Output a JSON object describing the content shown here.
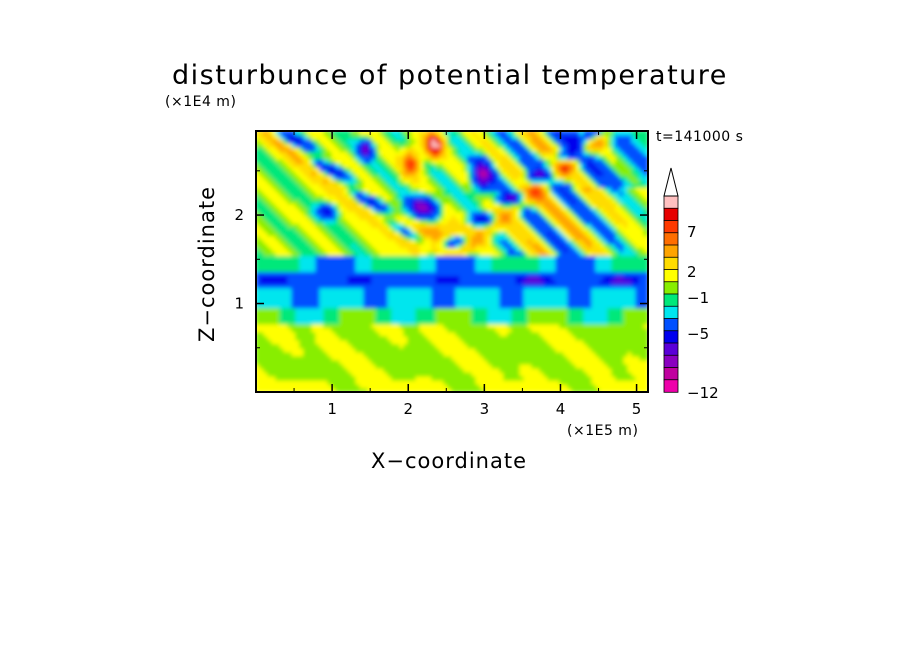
{
  "chart_data": {
    "type": "heatmap",
    "title": "disturbunce of potential temperature",
    "xlabel": "X−coordinate",
    "ylabel": "Z−coordinate",
    "x_unit": "(×1E5 m)",
    "y_unit": "(×1E4 m)",
    "annotation": "t=141000 s",
    "xlim": [
      0,
      5.15
    ],
    "ylim": [
      0,
      2.95
    ],
    "x_ticks": [
      1,
      2,
      3,
      4,
      5
    ],
    "y_ticks": [
      1,
      2
    ],
    "colorbar": {
      "levels": [
        -12,
        -5,
        -1,
        2,
        7
      ],
      "tick_labels": [
        "−12",
        "−5",
        "−1",
        "2",
        "7"
      ],
      "colors": [
        "#ee00aa",
        "#c0009f",
        "#8a00c0",
        "#5a00d8",
        "#0000ee",
        "#0050ff",
        "#00e6ee",
        "#00e87a",
        "#88ee00",
        "#ffff00",
        "#ffdc00",
        "#ffa400",
        "#ff6e00",
        "#ff3a00",
        "#e60000",
        "#ffc0c0"
      ],
      "extend": "max"
    },
    "field": {
      "description_bands": [
        {
          "z_range": [
            0,
            0.35
          ],
          "value": 1.0
        },
        {
          "z_range": [
            0.35,
            0.75
          ],
          "value": 0.6
        },
        {
          "z_range": [
            0.75,
            0.95
          ],
          "value": -0.3
        },
        {
          "z_range": [
            0.95,
            1.25
          ],
          "value": -1.0
        },
        {
          "z_range": [
            1.2,
            1.35
          ],
          "value": -4.5
        },
        {
          "z_range": [
            1.35,
            1.5
          ],
          "value": -0.5
        }
      ]
    },
    "grid": false
  }
}
